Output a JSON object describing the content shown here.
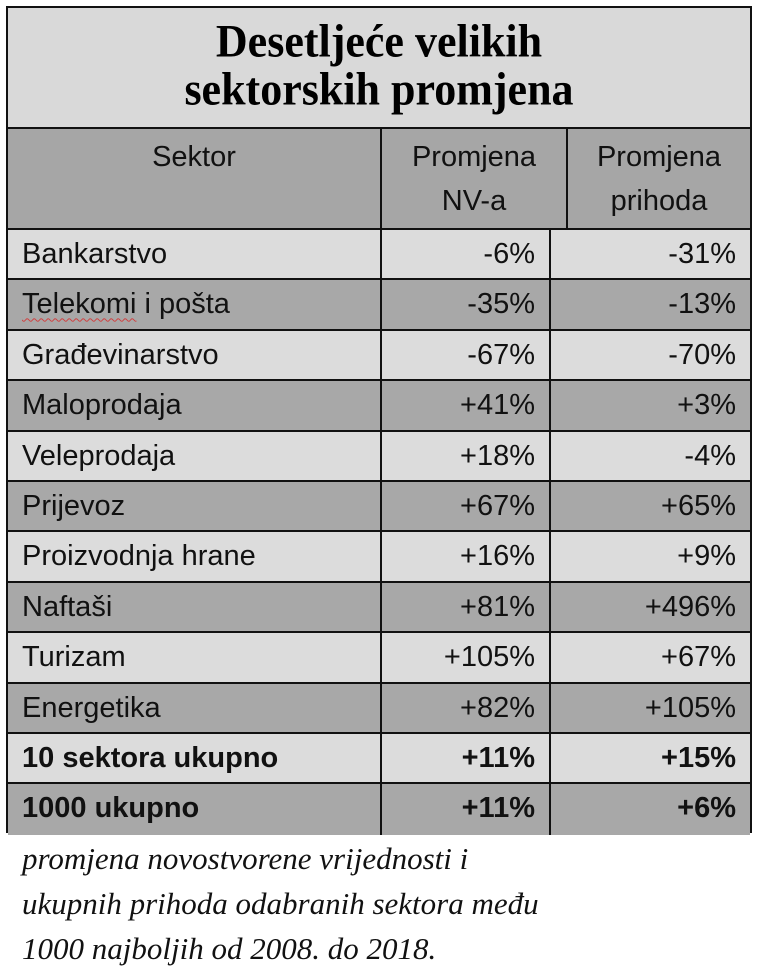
{
  "title": {
    "line1": "Desetljeće velikih",
    "line2": "sektorskih promjena"
  },
  "header": {
    "sector": "Sektor",
    "nv_line1": "Promjena",
    "nv_line2": "NV-a",
    "revenue_line1": "Promjena",
    "revenue_line2": "prihoda"
  },
  "rows": [
    {
      "sector": "Bankarstvo",
      "nv": "-6%",
      "revenue": "-31%"
    },
    {
      "sector_part1": "Telekomi",
      "sector_part2": " i pošta",
      "nv": "-35%",
      "revenue": "-13%"
    },
    {
      "sector": "Građevinarstvo",
      "nv": "-67%",
      "revenue": "-70%"
    },
    {
      "sector": "Maloprodaja",
      "nv": "+41%",
      "revenue": "+3%"
    },
    {
      "sector": "Veleprodaja",
      "nv": "+18%",
      "revenue": "-4%"
    },
    {
      "sector": "Prijevoz",
      "nv": "+67%",
      "revenue": "+65%"
    },
    {
      "sector": "Proizvodnja hrane",
      "nv": "+16%",
      "revenue": "+9%"
    },
    {
      "sector": "Naftaši",
      "nv": "+81%",
      "revenue": "+496%"
    },
    {
      "sector": "Turizam",
      "nv": "+105%",
      "revenue": "+67%"
    },
    {
      "sector": "Energetika",
      "nv": "+82%",
      "revenue": "+105%"
    },
    {
      "sector": "10 sektora ukupno",
      "nv": "+11%",
      "revenue": "+15%"
    },
    {
      "sector": "1000 ukupno",
      "nv": "+11%",
      "revenue": "+6%"
    }
  ],
  "caption": {
    "line1": "promjena novostvorene vrijednosti i",
    "line2": "ukupnih prihoda odabranih sektora među",
    "line3": "1000 najboljih od 2008. do 2018."
  },
  "colors": {
    "light_row": "#dcdcdc",
    "dark_row": "#a8a8a8",
    "border": "#111111"
  }
}
